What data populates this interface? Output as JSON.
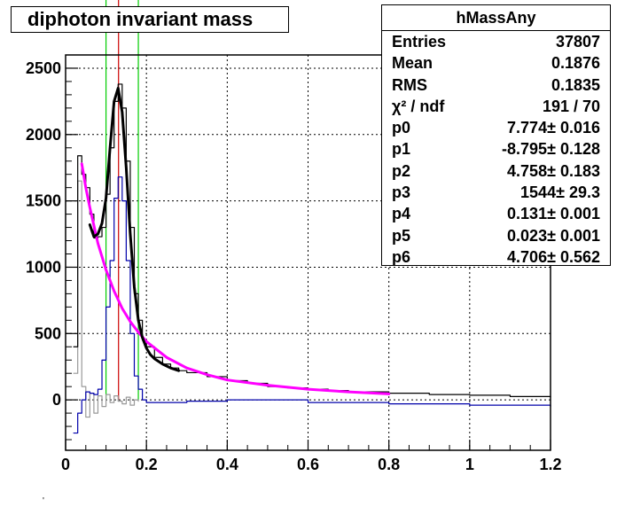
{
  "title": "diphoton invariant mass",
  "stats": {
    "name": "hMassAny",
    "rows": [
      {
        "label": "Entries",
        "value": "37807"
      },
      {
        "label": "Mean",
        "value": "0.1876"
      },
      {
        "label": "RMS",
        "value": "0.1835"
      },
      {
        "label": "χ² / ndf",
        "value": "191 / 70"
      },
      {
        "label": "p0",
        "value": "7.774± 0.016"
      },
      {
        "label": "p1",
        "value": "-8.795± 0.128"
      },
      {
        "label": "p2",
        "value": "4.758± 0.183"
      },
      {
        "label": "p3",
        "value": "1544± 29.3"
      },
      {
        "label": "p4",
        "value": "0.131± 0.001"
      },
      {
        "label": "p5",
        "value": "0.023± 0.001"
      },
      {
        "label": "p6",
        "value": "4.706± 0.562"
      }
    ]
  },
  "corner_mark": "'",
  "chart_data": {
    "type": "line",
    "title": "diphoton invariant mass",
    "xlabel": "",
    "ylabel": "",
    "xlim": [
      0,
      1.2
    ],
    "ylim": [
      -380,
      2600
    ],
    "grid": true,
    "x_ticks": [
      "0",
      "0.2",
      "0.4",
      "0.6",
      "0.8",
      "1",
      "1.2"
    ],
    "y_ticks": [
      "0",
      "500",
      "1000",
      "1500",
      "2000",
      "2500"
    ],
    "colors": {
      "histogram": "#000000",
      "fit_total": "#000000",
      "background_fit": "#ff00ff",
      "subtracted": "#0000aa",
      "residual": "#999999",
      "window_lines": "#00cc00",
      "peak_line": "#cc0000"
    },
    "vertical_lines": {
      "window": [
        0.1,
        0.18
      ],
      "peak": 0.131
    },
    "series": [
      {
        "role": "histogram",
        "x": [
          0.02,
          0.03,
          0.04,
          0.05,
          0.06,
          0.07,
          0.08,
          0.09,
          0.1,
          0.11,
          0.12,
          0.13,
          0.14,
          0.15,
          0.16,
          0.17,
          0.18,
          0.19,
          0.2,
          0.22,
          0.24,
          0.26,
          0.28,
          0.3,
          0.35,
          0.4,
          0.45,
          0.5,
          0.55,
          0.6,
          0.65,
          0.7,
          0.8,
          0.9,
          1.0,
          1.1,
          1.2
        ],
        "y": [
          400,
          1840,
          1700,
          1600,
          1400,
          1220,
          1230,
          1300,
          1550,
          1900,
          2250,
          2380,
          2200,
          1800,
          1300,
          800,
          600,
          450,
          400,
          320,
          270,
          240,
          220,
          205,
          175,
          145,
          125,
          100,
          90,
          80,
          70,
          60,
          50,
          40,
          35,
          25,
          20
        ]
      },
      {
        "role": "fit_total",
        "x": [
          0.06,
          0.07,
          0.08,
          0.09,
          0.1,
          0.11,
          0.12,
          0.13,
          0.14,
          0.15,
          0.16,
          0.17,
          0.18,
          0.19,
          0.2,
          0.21,
          0.22,
          0.24,
          0.26,
          0.28
        ],
        "y": [
          1320,
          1230,
          1250,
          1330,
          1520,
          1900,
          2250,
          2350,
          2170,
          1750,
          1250,
          850,
          600,
          470,
          390,
          340,
          310,
          270,
          240,
          220
        ]
      },
      {
        "role": "background_fit",
        "x": [
          0.04,
          0.05,
          0.06,
          0.08,
          0.1,
          0.12,
          0.14,
          0.16,
          0.18,
          0.2,
          0.25,
          0.3,
          0.35,
          0.4,
          0.5,
          0.6,
          0.7,
          0.8
        ],
        "y": [
          1780,
          1600,
          1450,
          1180,
          980,
          820,
          690,
          590,
          510,
          440,
          320,
          240,
          190,
          150,
          110,
          80,
          60,
          45
        ]
      },
      {
        "role": "subtracted",
        "x": [
          0.02,
          0.03,
          0.04,
          0.05,
          0.06,
          0.07,
          0.08,
          0.09,
          0.1,
          0.11,
          0.12,
          0.13,
          0.14,
          0.15,
          0.16,
          0.17,
          0.18,
          0.19,
          0.2,
          0.25,
          0.3,
          0.4,
          0.5,
          0.6,
          0.8,
          1.0,
          1.2
        ],
        "y": [
          -250,
          -100,
          0,
          60,
          50,
          40,
          80,
          300,
          700,
          1050,
          1520,
          1680,
          1500,
          1050,
          500,
          180,
          80,
          0,
          -20,
          -20,
          -10,
          0,
          0,
          -20,
          -30,
          -40,
          -50
        ]
      },
      {
        "role": "residual",
        "x": [
          0.02,
          0.03,
          0.04,
          0.05,
          0.06,
          0.07,
          0.08,
          0.09,
          0.1,
          0.11,
          0.12,
          0.13,
          0.14,
          0.15,
          0.16,
          0.17,
          0.18
        ],
        "y": [
          200,
          1650,
          100,
          -130,
          50,
          -100,
          30,
          -50,
          40,
          -20,
          30,
          -10,
          -30,
          20,
          -40,
          0,
          -10
        ]
      }
    ]
  }
}
